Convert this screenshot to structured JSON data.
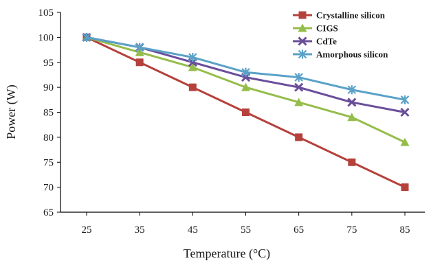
{
  "chart_data": {
    "type": "line",
    "title": "",
    "xlabel": "Temperature (°C)",
    "ylabel": "Power (W)",
    "x": [
      25,
      35,
      45,
      55,
      65,
      75,
      85
    ],
    "xticks": [
      "25",
      "35",
      "45",
      "55",
      "65",
      "75",
      "85"
    ],
    "ylim": [
      65,
      105
    ],
    "yticks": [
      65,
      70,
      75,
      80,
      85,
      90,
      95,
      100,
      105
    ],
    "grid": false,
    "legend_position": "top-right",
    "series": [
      {
        "name": "Crystalline silicon",
        "color": "#b5413c",
        "marker": "square",
        "values": [
          100,
          95,
          90,
          85,
          80,
          75,
          70
        ]
      },
      {
        "name": "CIGS",
        "color": "#95bd4a",
        "marker": "triangle",
        "values": [
          100,
          97,
          94,
          90,
          87,
          84,
          79
        ]
      },
      {
        "name": "CdTe",
        "color": "#6a4e9b",
        "marker": "x",
        "values": [
          100,
          98,
          95,
          92,
          90,
          87,
          85
        ]
      },
      {
        "name": "Amorphous silicon",
        "color": "#5aa1c8",
        "marker": "star",
        "values": [
          100,
          98,
          96,
          93,
          92,
          89.5,
          87.5
        ]
      }
    ]
  }
}
